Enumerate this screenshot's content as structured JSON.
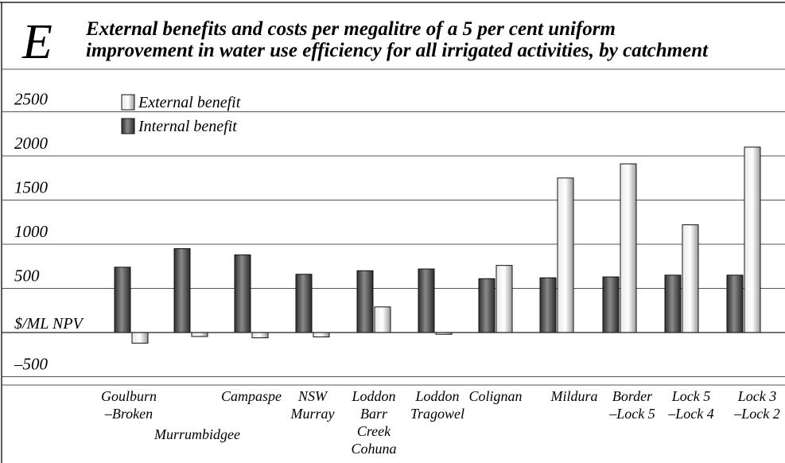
{
  "letter": "E",
  "title_lines": [
    "External benefits and costs per megalitre of a 5 per cent uniform",
    "improvement in water use efficiency for all irrigated activities, by catchment"
  ],
  "chart_data": {
    "type": "bar",
    "ylabel": "$/ML NPV",
    "ylim": [
      -750,
      2850
    ],
    "yticks": [
      2500,
      2000,
      1500,
      1000,
      500,
      -500
    ],
    "ytick_labels": [
      "2500",
      "2000",
      "1500",
      "1000",
      "500",
      "–500"
    ],
    "grid": true,
    "legend_position": "top-left",
    "categories": [
      [
        "Goulburn",
        "–Broken"
      ],
      [
        "Murrumbidgee"
      ],
      [
        "Campaspe"
      ],
      [
        "NSW",
        "Murray"
      ],
      [
        "Loddon",
        "Barr",
        "Creek",
        "Cohuna"
      ],
      [
        "Loddon",
        "Tragowel"
      ],
      [
        "Colignan"
      ],
      [
        "Mildura"
      ],
      [
        "Border",
        "–Lock 5"
      ],
      [
        "Lock 5",
        "–Lock 4"
      ],
      [
        "Lock 3",
        "–Lock 2"
      ]
    ],
    "series": [
      {
        "name": "Internal benefit",
        "color": "#4a4a4a",
        "values": [
          740,
          950,
          880,
          660,
          700,
          720,
          610,
          620,
          630,
          650,
          650
        ]
      },
      {
        "name": "External benefit",
        "color": "#cfcfcf",
        "values": [
          -120,
          -45,
          -60,
          -50,
          290,
          -20,
          760,
          1750,
          1910,
          1220,
          2100
        ]
      }
    ]
  },
  "colors": {
    "grid": "#555555",
    "dark_bar": "#4a4a4a",
    "light_bar": "#cfcfcf",
    "outline": "#111111"
  }
}
